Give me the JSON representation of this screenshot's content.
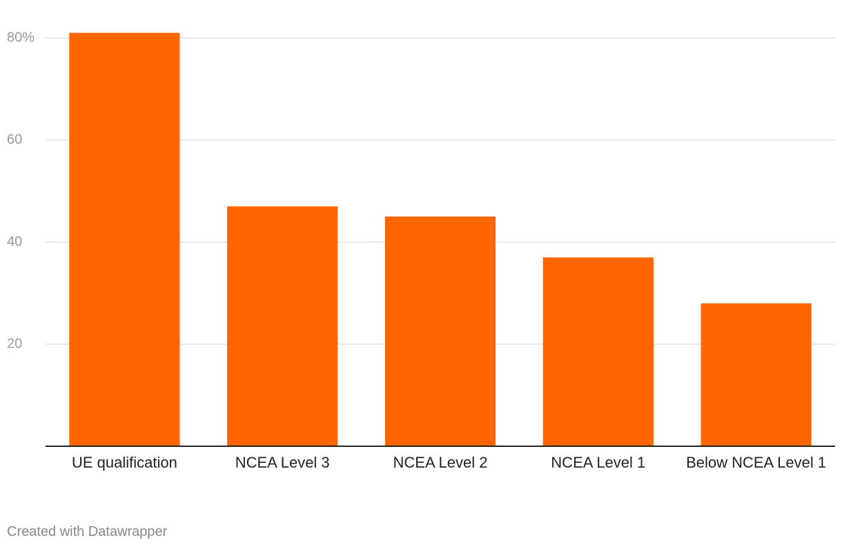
{
  "chart_data": {
    "type": "bar",
    "categories": [
      "UE qualification",
      "NCEA Level 3",
      "NCEA Level 2",
      "NCEA Level 1",
      "Below NCEA Level 1"
    ],
    "values": [
      81,
      47,
      45,
      37,
      28
    ],
    "color": "#ff6600",
    "ylim": [
      0,
      80
    ],
    "yticks": [
      20,
      40,
      60,
      {
        "value": 80,
        "label": "80%"
      }
    ],
    "grid": true,
    "credit": "Created with Datawrapper"
  }
}
